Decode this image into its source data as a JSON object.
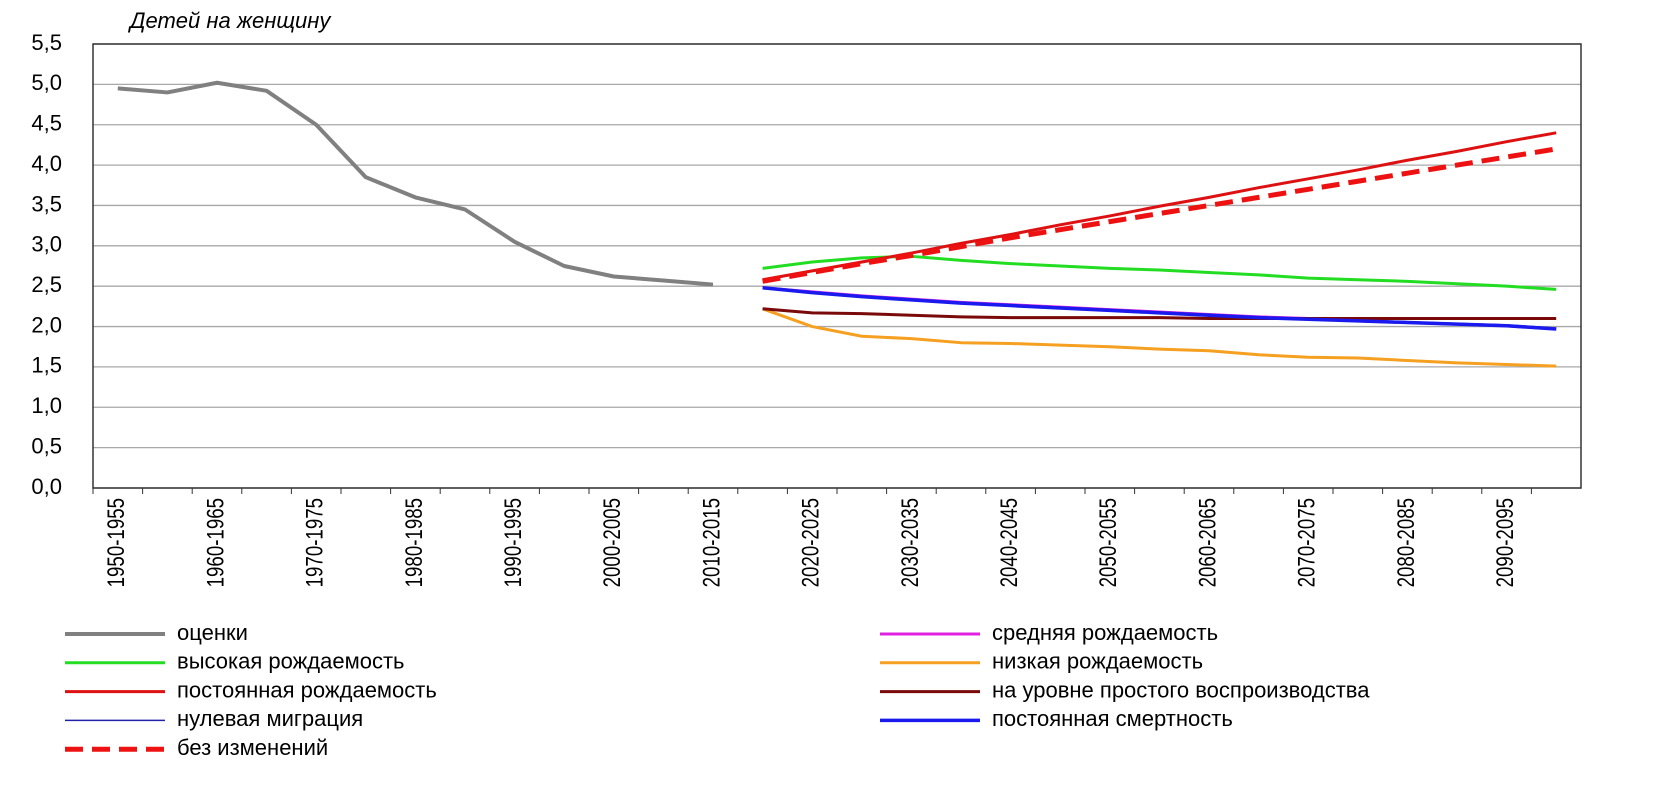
{
  "chart_data": {
    "type": "line",
    "ylabel": "Детей на женщину",
    "categories": [
      "1950-1955",
      null,
      "1960-1965",
      null,
      "1970-1975",
      null,
      "1980-1985",
      null,
      "1990-1995",
      null,
      "2000-2005",
      null,
      "2010-2015",
      null,
      "2020-2025",
      null,
      "2030-2035",
      null,
      "2040-2045",
      null,
      "2050-2055",
      null,
      "2060-2065",
      null,
      "2070-2075",
      null,
      "2080-2085",
      null,
      "2090-2095",
      null
    ],
    "ylim": [
      0,
      5.5
    ],
    "yticks": [
      {
        "value": 0,
        "label": "0,0"
      },
      {
        "value": 0.5,
        "label": "0,5"
      },
      {
        "value": 1,
        "label": "1,0"
      },
      {
        "value": 1.5,
        "label": "1,5"
      },
      {
        "value": 2,
        "label": "2,0"
      },
      {
        "value": 2.5,
        "label": "2,5"
      },
      {
        "value": 3,
        "label": "3,0"
      },
      {
        "value": 3.5,
        "label": "3,5"
      },
      {
        "value": 4,
        "label": "4,0"
      },
      {
        "value": 4.5,
        "label": "4,5"
      },
      {
        "value": 5,
        "label": "5,0"
      },
      {
        "value": 5.5,
        "label": "5,5"
      }
    ],
    "grid": true,
    "legend": "bottom",
    "series": [
      {
        "name": "оценки",
        "color": "#808080",
        "width": 4,
        "values": [
          4.95,
          4.9,
          5.02,
          4.92,
          4.5,
          3.85,
          3.6,
          3.45,
          3.05,
          2.75,
          2.62,
          2.57,
          2.52,
          null,
          null,
          null,
          null,
          null,
          null,
          null,
          null,
          null,
          null,
          null,
          null,
          null,
          null,
          null,
          null,
          null
        ]
      },
      {
        "name": "средняя рождаемость",
        "color": "#e020e0",
        "width": 3,
        "values": [
          null,
          null,
          null,
          null,
          null,
          null,
          null,
          null,
          null,
          null,
          null,
          null,
          null,
          2.48,
          2.43,
          2.38,
          2.34,
          2.3,
          2.27,
          2.24,
          2.21,
          2.18,
          2.15,
          2.12,
          2.1,
          2.07,
          2.05,
          2.03,
          2.01,
          1.97
        ]
      },
      {
        "name": "высокая рождаемость",
        "color": "#22dd22",
        "width": 3,
        "values": [
          null,
          null,
          null,
          null,
          null,
          null,
          null,
          null,
          null,
          null,
          null,
          null,
          null,
          2.72,
          2.8,
          2.85,
          2.87,
          2.82,
          2.78,
          2.75,
          2.72,
          2.7,
          2.67,
          2.64,
          2.6,
          2.58,
          2.56,
          2.53,
          2.5,
          2.46
        ]
      },
      {
        "name": "низкая рождаемость",
        "color": "#f5a020",
        "width": 3,
        "values": [
          null,
          null,
          null,
          null,
          null,
          null,
          null,
          null,
          null,
          null,
          null,
          null,
          null,
          2.22,
          2.0,
          1.88,
          1.85,
          1.8,
          1.79,
          1.77,
          1.75,
          1.72,
          1.7,
          1.65,
          1.62,
          1.61,
          1.58,
          1.55,
          1.53,
          1.51
        ]
      },
      {
        "name": "постоянная рождаемость",
        "color": "#dd1111",
        "width": 3,
        "values": [
          null,
          null,
          null,
          null,
          null,
          null,
          null,
          null,
          null,
          null,
          null,
          null,
          null,
          2.58,
          2.69,
          2.8,
          2.91,
          3.03,
          3.14,
          3.26,
          3.37,
          3.49,
          3.6,
          3.72,
          3.83,
          3.94,
          4.06,
          4.17,
          4.29,
          4.4
        ]
      },
      {
        "name": "на уровне простого воспроизводства",
        "color": "#7a0a0a",
        "width": 3,
        "values": [
          null,
          null,
          null,
          null,
          null,
          null,
          null,
          null,
          null,
          null,
          null,
          null,
          null,
          2.22,
          2.17,
          2.16,
          2.14,
          2.12,
          2.11,
          2.11,
          2.11,
          2.11,
          2.1,
          2.1,
          2.1,
          2.1,
          2.1,
          2.1,
          2.1,
          2.1
        ]
      },
      {
        "name": "нулевая миграция",
        "color": "#2020aa",
        "width": 1.5,
        "values": [
          null,
          null,
          null,
          null,
          null,
          null,
          null,
          null,
          null,
          null,
          null,
          null,
          null,
          2.47,
          2.42,
          2.38,
          2.34,
          2.3,
          2.27,
          2.24,
          2.21,
          2.18,
          2.15,
          2.12,
          2.1,
          2.08,
          2.06,
          2.04,
          2.02,
          1.98
        ]
      },
      {
        "name": "постоянная смертность",
        "color": "#1a1aee",
        "width": 3.5,
        "values": [
          null,
          null,
          null,
          null,
          null,
          null,
          null,
          null,
          null,
          null,
          null,
          null,
          null,
          2.48,
          2.42,
          2.37,
          2.33,
          2.29,
          2.26,
          2.23,
          2.2,
          2.17,
          2.14,
          2.11,
          2.09,
          2.07,
          2.05,
          2.03,
          2.01,
          1.97
        ]
      },
      {
        "name": "без изменений",
        "color": "#ee1111",
        "width": 5,
        "style": "dashed",
        "values": [
          null,
          null,
          null,
          null,
          null,
          null,
          null,
          null,
          null,
          null,
          null,
          null,
          null,
          2.56,
          2.67,
          2.78,
          2.88,
          2.99,
          3.1,
          3.2,
          3.3,
          3.4,
          3.5,
          3.6,
          3.7,
          3.8,
          3.9,
          4.0,
          4.1,
          4.2
        ]
      }
    ]
  }
}
